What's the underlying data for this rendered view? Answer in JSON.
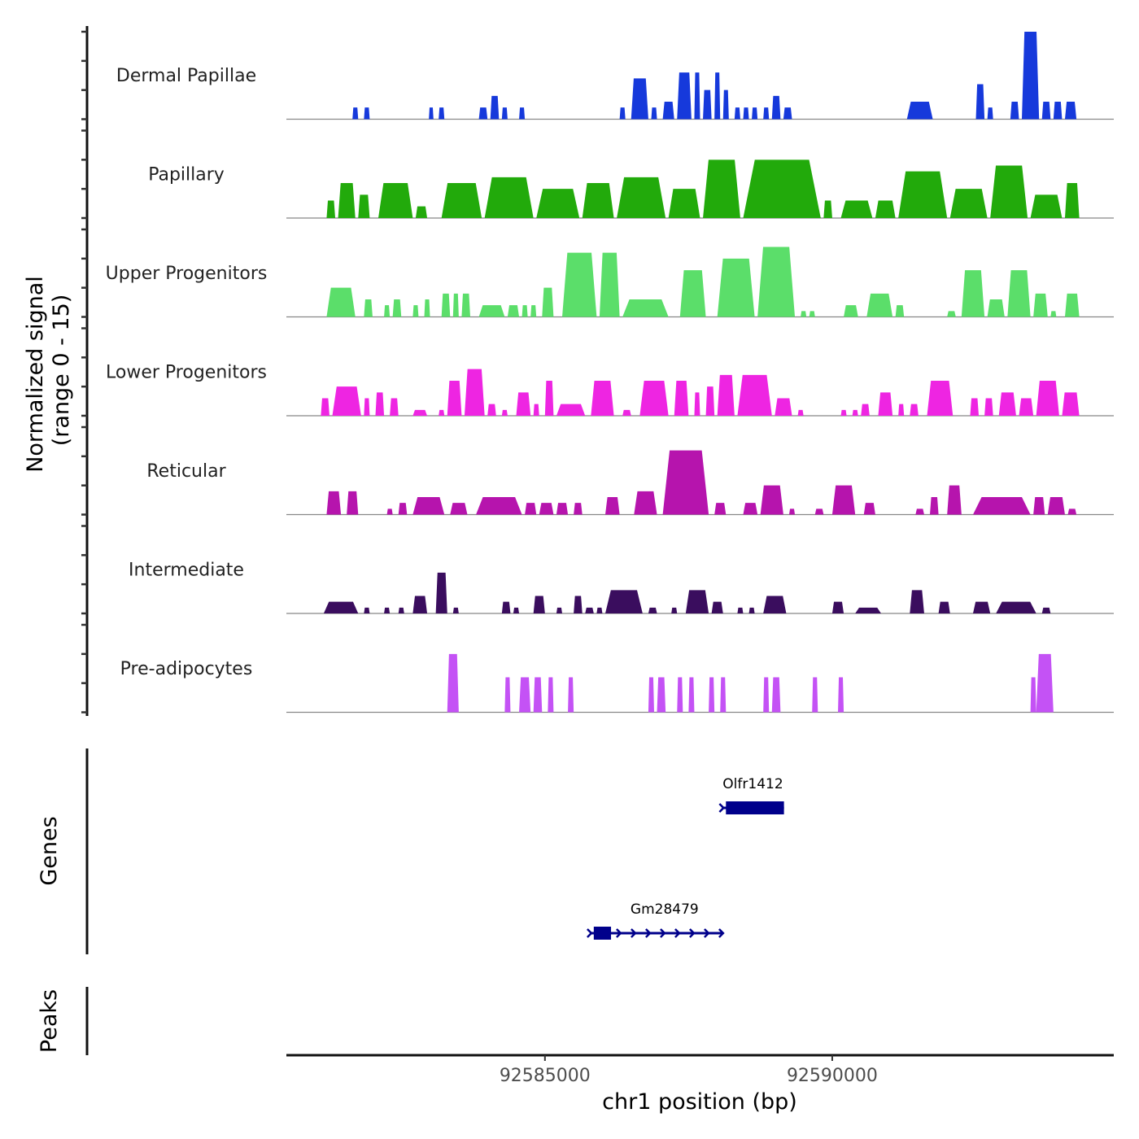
{
  "chart_data": {
    "type": "area",
    "title": "",
    "ylabel_line1": "Normalized signal",
    "ylabel_line2": "(range 0 - 15)",
    "xlabel": "chr1 position (bp)",
    "xlim": [
      92580500,
      92594900
    ],
    "ylim": [
      0,
      15
    ],
    "y_ticks": [
      0,
      5,
      10,
      15
    ],
    "x_ticks": [
      92585000,
      92590000
    ],
    "x_tick_labels": [
      "92585000",
      "92590000"
    ],
    "genes_label": "Genes",
    "peaks_label": "Peaks",
    "series": [
      {
        "name": "Dermal Papillae",
        "color": "#1639DB",
        "regions": [
          [
            92581650,
            92581750,
            2
          ],
          [
            92581850,
            92581950,
            2
          ],
          [
            92582980,
            92583060,
            2
          ],
          [
            92583150,
            92583250,
            2
          ],
          [
            92583850,
            92584000,
            2
          ],
          [
            92584050,
            92584200,
            4
          ],
          [
            92584250,
            92584350,
            2
          ],
          [
            92584550,
            92584650,
            2
          ],
          [
            92586300,
            92586400,
            2
          ],
          [
            92586500,
            92586800,
            7
          ],
          [
            92586850,
            92586950,
            2
          ],
          [
            92587050,
            92587250,
            3
          ],
          [
            92587300,
            92587550,
            8
          ],
          [
            92587600,
            92587700,
            8
          ],
          [
            92587750,
            92587900,
            5
          ],
          [
            92587950,
            92588050,
            8
          ],
          [
            92588100,
            92588200,
            5
          ],
          [
            92588300,
            92588400,
            2
          ],
          [
            92588450,
            92588550,
            2
          ],
          [
            92588600,
            92588700,
            2
          ],
          [
            92588800,
            92588900,
            2
          ],
          [
            92588950,
            92589100,
            4
          ],
          [
            92589150,
            92589300,
            2
          ],
          [
            92591300,
            92591750,
            3
          ],
          [
            92592500,
            92592650,
            6
          ],
          [
            92592700,
            92592800,
            2
          ],
          [
            92593100,
            92593250,
            3
          ],
          [
            92593300,
            92593600,
            15
          ],
          [
            92593650,
            92593800,
            3
          ],
          [
            92593850,
            92594000,
            3
          ],
          [
            92594050,
            92594250,
            3
          ]
        ]
      },
      {
        "name": "Papillary",
        "color": "#22AA0B",
        "regions": [
          [
            92581200,
            92581350,
            3
          ],
          [
            92581400,
            92581700,
            6
          ],
          [
            92581750,
            92581950,
            4
          ],
          [
            92582100,
            92582700,
            6
          ],
          [
            92582750,
            92582950,
            2
          ],
          [
            92583200,
            92583900,
            6
          ],
          [
            92583950,
            92584800,
            7
          ],
          [
            92584850,
            92585600,
            5
          ],
          [
            92585650,
            92586200,
            6
          ],
          [
            92586250,
            92587100,
            7
          ],
          [
            92587150,
            92587700,
            5
          ],
          [
            92587750,
            92588400,
            10
          ],
          [
            92588450,
            92589800,
            10
          ],
          [
            92589850,
            92590000,
            3
          ],
          [
            92590150,
            92590700,
            3
          ],
          [
            92590750,
            92591100,
            3
          ],
          [
            92591150,
            92592000,
            8
          ],
          [
            92592050,
            92592700,
            5
          ],
          [
            92592750,
            92593400,
            9
          ],
          [
            92593450,
            92594000,
            4
          ],
          [
            92594050,
            92594300,
            6
          ]
        ]
      },
      {
        "name": "Upper Progenitors",
        "color": "#5BDE6A",
        "regions": [
          [
            92581200,
            92581700,
            5
          ],
          [
            92581850,
            92582000,
            3
          ],
          [
            92582200,
            92582300,
            2
          ],
          [
            92582350,
            92582500,
            3
          ],
          [
            92582700,
            92582800,
            2
          ],
          [
            92582900,
            92583000,
            3
          ],
          [
            92583200,
            92583350,
            4
          ],
          [
            92583400,
            92583500,
            4
          ],
          [
            92583550,
            92583700,
            4
          ],
          [
            92583850,
            92584300,
            2
          ],
          [
            92584350,
            92584550,
            2
          ],
          [
            92584600,
            92584700,
            2
          ],
          [
            92584750,
            92584850,
            2
          ],
          [
            92584950,
            92585150,
            5
          ],
          [
            92585300,
            92585900,
            11
          ],
          [
            92585950,
            92586300,
            11
          ],
          [
            92586350,
            92587150,
            3
          ],
          [
            92587350,
            92587800,
            8
          ],
          [
            92588000,
            92588650,
            10
          ],
          [
            92588700,
            92589350,
            12
          ],
          [
            92589450,
            92589550,
            1
          ],
          [
            92589600,
            92589700,
            1
          ],
          [
            92590200,
            92590450,
            2
          ],
          [
            92590600,
            92591050,
            4
          ],
          [
            92591100,
            92591250,
            2
          ],
          [
            92592000,
            92592150,
            1
          ],
          [
            92592250,
            92592650,
            8
          ],
          [
            92592700,
            92593000,
            3
          ],
          [
            92593050,
            92593450,
            8
          ],
          [
            92593500,
            92593750,
            4
          ],
          [
            92593800,
            92593900,
            1
          ],
          [
            92594050,
            92594300,
            4
          ]
        ]
      },
      {
        "name": "Lower Progenitors",
        "color": "#EE25E2",
        "regions": [
          [
            92581100,
            92581250,
            3
          ],
          [
            92581300,
            92581800,
            5
          ],
          [
            92581850,
            92581950,
            3
          ],
          [
            92582050,
            92582200,
            4
          ],
          [
            92582300,
            92582450,
            3
          ],
          [
            92582700,
            92582950,
            1
          ],
          [
            92583150,
            92583250,
            1
          ],
          [
            92583300,
            92583550,
            6
          ],
          [
            92583600,
            92583950,
            8
          ],
          [
            92584000,
            92584150,
            2
          ],
          [
            92584250,
            92584350,
            1
          ],
          [
            92584500,
            92584750,
            4
          ],
          [
            92584800,
            92584900,
            2
          ],
          [
            92585000,
            92585150,
            6
          ],
          [
            92585200,
            92585700,
            2
          ],
          [
            92585800,
            92586200,
            6
          ],
          [
            92586350,
            92586500,
            1
          ],
          [
            92586650,
            92587150,
            6
          ],
          [
            92587250,
            92587500,
            6
          ],
          [
            92587600,
            92587700,
            4
          ],
          [
            92587800,
            92587950,
            5
          ],
          [
            92588000,
            92588300,
            7
          ],
          [
            92588350,
            92588950,
            7
          ],
          [
            92589000,
            92589300,
            3
          ],
          [
            92589400,
            92589500,
            1
          ],
          [
            92590150,
            92590250,
            1
          ],
          [
            92590350,
            92590450,
            1
          ],
          [
            92590500,
            92590650,
            2
          ],
          [
            92590800,
            92591050,
            4
          ],
          [
            92591150,
            92591250,
            2
          ],
          [
            92591350,
            92591500,
            2
          ],
          [
            92591650,
            92592100,
            6
          ],
          [
            92592400,
            92592550,
            3
          ],
          [
            92592650,
            92592800,
            3
          ],
          [
            92592900,
            92593200,
            4
          ],
          [
            92593250,
            92593500,
            3
          ],
          [
            92593550,
            92593950,
            6
          ],
          [
            92594000,
            92594300,
            4
          ]
        ]
      },
      {
        "name": "Reticular",
        "color": "#B614AD",
        "regions": [
          [
            92581200,
            92581450,
            4
          ],
          [
            92581550,
            92581750,
            4
          ],
          [
            92582250,
            92582350,
            1
          ],
          [
            92582450,
            92582600,
            2
          ],
          [
            92582700,
            92583250,
            3
          ],
          [
            92583350,
            92583650,
            2
          ],
          [
            92583800,
            92584600,
            3
          ],
          [
            92584650,
            92584850,
            2
          ],
          [
            92584900,
            92585150,
            2
          ],
          [
            92585200,
            92585400,
            2
          ],
          [
            92585500,
            92585650,
            2
          ],
          [
            92586050,
            92586300,
            3
          ],
          [
            92586550,
            92586950,
            4
          ],
          [
            92587050,
            92587850,
            11
          ],
          [
            92587950,
            92588150,
            2
          ],
          [
            92588450,
            92588700,
            2
          ],
          [
            92588750,
            92589150,
            5
          ],
          [
            92589250,
            92589350,
            1
          ],
          [
            92589700,
            92589850,
            1
          ],
          [
            92590000,
            92590400,
            5
          ],
          [
            92590550,
            92590750,
            2
          ],
          [
            92591450,
            92591600,
            1
          ],
          [
            92591700,
            92591850,
            3
          ],
          [
            92592000,
            92592250,
            5
          ],
          [
            92592450,
            92593450,
            3
          ],
          [
            92593500,
            92593700,
            3
          ],
          [
            92593750,
            92594050,
            3
          ],
          [
            92594100,
            92594250,
            1
          ]
        ]
      },
      {
        "name": "Intermediate",
        "color": "#3A0D5E",
        "regions": [
          [
            92581150,
            92581750,
            2
          ],
          [
            92581850,
            92581950,
            1
          ],
          [
            92582200,
            92582300,
            1
          ],
          [
            92582450,
            92582550,
            1
          ],
          [
            92582700,
            92582950,
            3
          ],
          [
            92583100,
            92583300,
            7
          ],
          [
            92583400,
            92583500,
            1
          ],
          [
            92584250,
            92584400,
            2
          ],
          [
            92584450,
            92584550,
            1
          ],
          [
            92584800,
            92585000,
            3
          ],
          [
            92585200,
            92585300,
            1
          ],
          [
            92585500,
            92585650,
            3
          ],
          [
            92585700,
            92585850,
            1
          ],
          [
            92585900,
            92586000,
            1
          ],
          [
            92586050,
            92586700,
            4
          ],
          [
            92586800,
            92586950,
            1
          ],
          [
            92587200,
            92587300,
            1
          ],
          [
            92587450,
            92587850,
            4
          ],
          [
            92587900,
            92588100,
            2
          ],
          [
            92588350,
            92588450,
            1
          ],
          [
            92588550,
            92588650,
            1
          ],
          [
            92588800,
            92589200,
            3
          ],
          [
            92590000,
            92590200,
            2
          ],
          [
            92590400,
            92590850,
            1
          ],
          [
            92591350,
            92591600,
            4
          ],
          [
            92591850,
            92592050,
            2
          ],
          [
            92592450,
            92592750,
            2
          ],
          [
            92592850,
            92593550,
            2
          ],
          [
            92593650,
            92593800,
            1
          ]
        ]
      },
      {
        "name": "Pre-adipocytes",
        "color": "#C452F5",
        "regions": [
          [
            92583300,
            92583500,
            10
          ],
          [
            92584300,
            92584400,
            6
          ],
          [
            92584550,
            92584750,
            6
          ],
          [
            92584800,
            92584950,
            6
          ],
          [
            92585050,
            92585150,
            6
          ],
          [
            92585400,
            92585500,
            6
          ],
          [
            92586800,
            92586900,
            6
          ],
          [
            92586950,
            92587100,
            6
          ],
          [
            92587300,
            92587400,
            6
          ],
          [
            92587500,
            92587600,
            6
          ],
          [
            92587850,
            92587950,
            6
          ],
          [
            92588050,
            92588150,
            6
          ],
          [
            92588800,
            92588900,
            6
          ],
          [
            92588950,
            92589100,
            6
          ],
          [
            92589650,
            92589750,
            6
          ],
          [
            92590100,
            92590200,
            6
          ],
          [
            92593450,
            92593550,
            6
          ],
          [
            92593550,
            92593850,
            10
          ]
        ]
      }
    ],
    "genes": [
      {
        "name": "Olfr1412",
        "start": 92588080,
        "end": 92589160,
        "strand": "+",
        "row": 0,
        "exons": [
          [
            92588150,
            92589160
          ]
        ]
      },
      {
        "name": "Gm28479",
        "start": 92585780,
        "end": 92588100,
        "strand": "+",
        "row": 1,
        "exons": [
          [
            92585850,
            92586150
          ]
        ]
      }
    ],
    "peaks": [],
    "gene_color": "#00008B",
    "baseline_color": "#888888"
  }
}
